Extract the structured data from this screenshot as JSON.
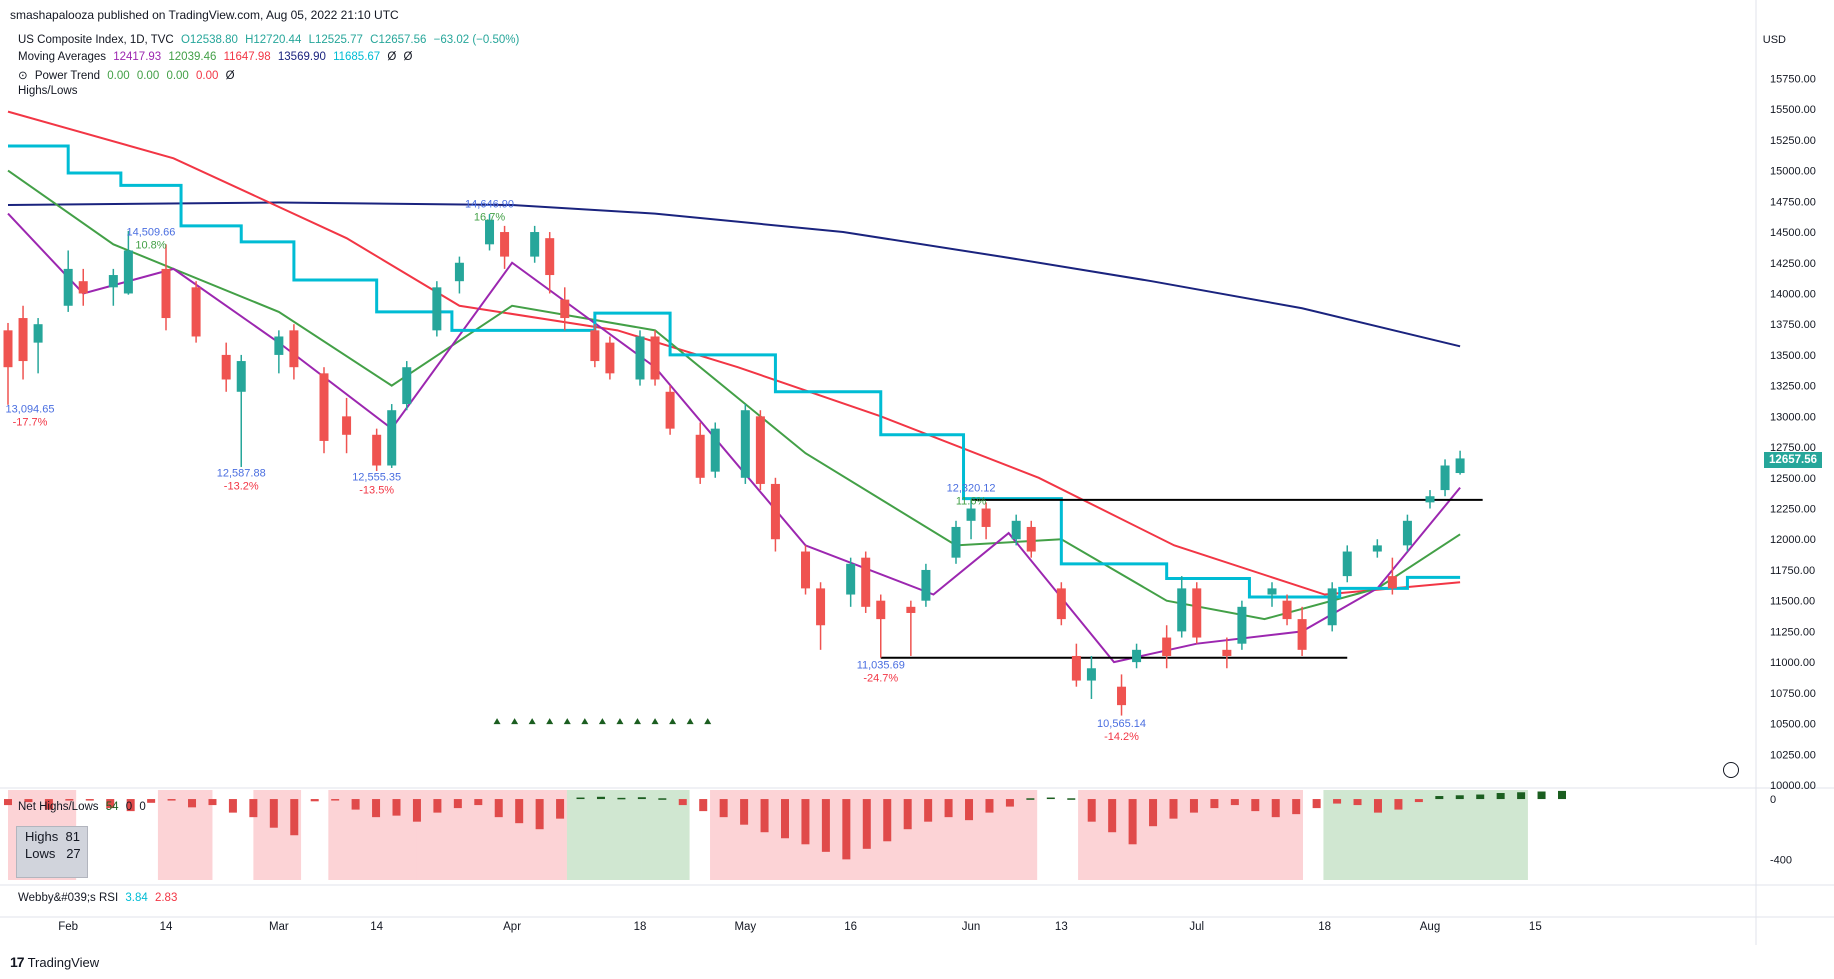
{
  "header": {
    "published_line": "smashapalooza published on TradingView.com, Aug 05, 2022 21:10 UTC"
  },
  "legend": {
    "symbol_line": {
      "name": "US Composite Index, 1D, TVC",
      "open": "O12538.80",
      "high": "H12720.44",
      "low": "L12525.77",
      "close": "C12657.56",
      "change": "−63.02 (−0.50%)"
    },
    "ma_line": {
      "label": "Moving Averages",
      "v1": "12417.93",
      "v2": "12039.46",
      "v3": "11647.98",
      "v4": "13569.90",
      "v5": "11685.67",
      "v6": "Ø",
      "v7": "Ø"
    },
    "power_trend": {
      "label": "Power Trend",
      "v1": "0.00",
      "v2": "0.00",
      "v3": "0.00",
      "v4": "0.00",
      "v5": "Ø"
    },
    "highs_lows": {
      "label": "Highs/Lows"
    }
  },
  "axis": {
    "currency": "USD",
    "last_price": "12657.56",
    "price_ticks": [
      "15750.00",
      "15500.00",
      "15250.00",
      "15000.00",
      "14750.00",
      "14500.00",
      "14250.00",
      "14000.00",
      "13750.00",
      "13500.00",
      "13250.00",
      "13000.00",
      "12750.00",
      "12500.00",
      "12250.00",
      "12000.00",
      "11750.00",
      "11500.00",
      "11250.00",
      "11000.00",
      "10750.00",
      "10500.00",
      "10250.00",
      "10000.00"
    ],
    "sub_ticks": [
      "0",
      "-400"
    ]
  },
  "time_axis": [
    "Feb",
    "14",
    "Mar",
    "14",
    "Apr",
    "18",
    "May",
    "16",
    "Jun",
    "13",
    "Jul",
    "18",
    "Aug",
    "15"
  ],
  "annotations": [
    {
      "price": "14,509.66",
      "pct": "10.8%"
    },
    {
      "price": "14,646.90",
      "pct": "16.7%"
    },
    {
      "price": "13,094.65",
      "pct": "-17.7%"
    },
    {
      "price": "12,587.88",
      "pct": "-13.2%"
    },
    {
      "price": "12,555.35",
      "pct": "-13.5%"
    },
    {
      "price": "12,320.12",
      "pct": "11.6%"
    },
    {
      "price": "11,035.69",
      "pct": "-24.7%"
    },
    {
      "price": "10,565.14",
      "pct": "-14.2%"
    }
  ],
  "subpanel": {
    "label": "Net Highs/Lows",
    "v1": "54",
    "v2": "0",
    "v3": "0",
    "highs_label": "Highs",
    "highs_value": "81",
    "lows_label": "Lows",
    "lows_value": "27"
  },
  "rsi": {
    "label": "Webby&#039;s RSI",
    "v1": "3.84",
    "v2": "2.83"
  },
  "footer": {
    "brand": "TradingView"
  },
  "colors": {
    "up": "#26a69a",
    "down": "#ef5350",
    "ma_purple": "#9c27b0",
    "ma_green": "#43a047",
    "ma_red": "#f23645",
    "ma_navy": "#1a237e",
    "ma_cyan": "#00bcd4"
  },
  "chart_data": {
    "type": "candlestick",
    "title": "US Composite Index, 1D, TVC",
    "ylim": [
      10000,
      15900
    ],
    "x_range_days": [
      "2022-01-24",
      "2022-08-22"
    ],
    "candles": [
      [
        "2022-01-24",
        13700,
        13760,
        13094,
        13400
      ],
      [
        "2022-01-26",
        13800,
        13900,
        13300,
        13450
      ],
      [
        "2022-01-28",
        13600,
        13800,
        13350,
        13750
      ],
      [
        "2022-02-01",
        13900,
        14350,
        13850,
        14200
      ],
      [
        "2022-02-03",
        14100,
        14200,
        13900,
        14000
      ],
      [
        "2022-02-07",
        14050,
        14200,
        13900,
        14150
      ],
      [
        "2022-02-09",
        14000,
        14509,
        13990,
        14350
      ],
      [
        "2022-02-14",
        14200,
        14400,
        13700,
        13800
      ],
      [
        "2022-02-18",
        14050,
        14100,
        13600,
        13650
      ],
      [
        "2022-02-22",
        13500,
        13600,
        13200,
        13300
      ],
      [
        "2022-02-24",
        13200,
        13500,
        12588,
        13450
      ],
      [
        "2022-03-01",
        13500,
        13700,
        13350,
        13650
      ],
      [
        "2022-03-03",
        13700,
        13750,
        13300,
        13400
      ],
      [
        "2022-03-07",
        13350,
        13400,
        12700,
        12800
      ],
      [
        "2022-03-10",
        13000,
        13150,
        12700,
        12850
      ],
      [
        "2022-03-14",
        12850,
        12900,
        12555,
        12600
      ],
      [
        "2022-03-16",
        12600,
        13100,
        12580,
        13050
      ],
      [
        "2022-03-18",
        13100,
        13450,
        13050,
        13400
      ],
      [
        "2022-03-22",
        13700,
        14100,
        13650,
        14050
      ],
      [
        "2022-03-25",
        14100,
        14300,
        14000,
        14250
      ],
      [
        "2022-03-29",
        14400,
        14646,
        14350,
        14600
      ],
      [
        "2022-03-31",
        14500,
        14550,
        14200,
        14300
      ],
      [
        "2022-04-04",
        14300,
        14550,
        14250,
        14500
      ],
      [
        "2022-04-06",
        14450,
        14500,
        14000,
        14150
      ],
      [
        "2022-04-08",
        13950,
        14050,
        13700,
        13800
      ],
      [
        "2022-04-12",
        13700,
        13750,
        13400,
        13450
      ],
      [
        "2022-04-14",
        13600,
        13650,
        13300,
        13350
      ],
      [
        "2022-04-18",
        13300,
        13700,
        13250,
        13650
      ],
      [
        "2022-04-20",
        13650,
        13700,
        13250,
        13300
      ],
      [
        "2022-04-22",
        13200,
        13250,
        12850,
        12900
      ],
      [
        "2022-04-26",
        12850,
        12950,
        12450,
        12500
      ],
      [
        "2022-04-28",
        12550,
        12950,
        12500,
        12900
      ],
      [
        "2022-05-02",
        12500,
        13100,
        12450,
        13050
      ],
      [
        "2022-05-04",
        13000,
        13050,
        12400,
        12450
      ],
      [
        "2022-05-06",
        12450,
        12500,
        11900,
        12000
      ],
      [
        "2022-05-10",
        11900,
        11950,
        11550,
        11600
      ],
      [
        "2022-05-12",
        11600,
        11650,
        11100,
        11300
      ],
      [
        "2022-05-16",
        11550,
        11850,
        11450,
        11800
      ],
      [
        "2022-05-18",
        11850,
        11900,
        11400,
        11450
      ],
      [
        "2022-05-20",
        11500,
        11550,
        11036,
        11350
      ],
      [
        "2022-05-24",
        11450,
        11500,
        11050,
        11400
      ],
      [
        "2022-05-26",
        11500,
        11800,
        11450,
        11750
      ],
      [
        "2022-05-30",
        11850,
        12150,
        11800,
        12100
      ],
      [
        "2022-06-01",
        12150,
        12320,
        12000,
        12250
      ],
      [
        "2022-06-03",
        12250,
        12300,
        12000,
        12100
      ],
      [
        "2022-06-07",
        12000,
        12200,
        11950,
        12150
      ],
      [
        "2022-06-09",
        12100,
        12150,
        11850,
        11900
      ],
      [
        "2022-06-13",
        11600,
        11650,
        11300,
        11350
      ],
      [
        "2022-06-15",
        11050,
        11150,
        10800,
        10850
      ],
      [
        "2022-06-17",
        10850,
        11050,
        10700,
        10950
      ],
      [
        "2022-06-21",
        10800,
        10900,
        10565,
        10650
      ],
      [
        "2022-06-23",
        11000,
        11150,
        10950,
        11100
      ],
      [
        "2022-06-27",
        11200,
        11300,
        10950,
        11050
      ],
      [
        "2022-06-29",
        11250,
        11700,
        11200,
        11600
      ],
      [
        "2022-07-01",
        11600,
        11650,
        11150,
        11200
      ],
      [
        "2022-07-05",
        11100,
        11200,
        10950,
        11050
      ],
      [
        "2022-07-07",
        11150,
        11500,
        11100,
        11450
      ],
      [
        "2022-07-11",
        11550,
        11650,
        11450,
        11600
      ],
      [
        "2022-07-13",
        11500,
        11550,
        11300,
        11350
      ],
      [
        "2022-07-15",
        11350,
        11450,
        11050,
        11100
      ],
      [
        "2022-07-19",
        11300,
        11650,
        11250,
        11600
      ],
      [
        "2022-07-21",
        11700,
        11950,
        11650,
        11900
      ],
      [
        "2022-07-25",
        11900,
        12000,
        11850,
        11950
      ],
      [
        "2022-07-27",
        11700,
        11850,
        11550,
        11600
      ],
      [
        "2022-07-29",
        11950,
        12200,
        11900,
        12150
      ],
      [
        "2022-08-01",
        12300,
        12400,
        12250,
        12350
      ],
      [
        "2022-08-03",
        12400,
        12650,
        12350,
        12600
      ],
      [
        "2022-08-05",
        12538.8,
        12720.44,
        12525.77,
        12657.56
      ]
    ],
    "series": [
      {
        "name": "MA 200",
        "color": "#1a237e",
        "points": [
          [
            "2022-01-24",
            14720
          ],
          [
            "2022-03-01",
            14740
          ],
          [
            "2022-04-01",
            14720
          ],
          [
            "2022-04-20",
            14650
          ],
          [
            "2022-05-15",
            14500
          ],
          [
            "2022-06-05",
            14300
          ],
          [
            "2022-06-25",
            14100
          ],
          [
            "2022-07-15",
            13880
          ],
          [
            "2022-08-05",
            13570
          ]
        ]
      },
      {
        "name": "MA 50",
        "color": "#f23645",
        "points": [
          [
            "2022-01-24",
            15480
          ],
          [
            "2022-02-15",
            15100
          ],
          [
            "2022-03-10",
            14450
          ],
          [
            "2022-03-25",
            13900
          ],
          [
            "2022-04-15",
            13700
          ],
          [
            "2022-05-01",
            13400
          ],
          [
            "2022-05-20",
            13000
          ],
          [
            "2022-06-10",
            12500
          ],
          [
            "2022-06-28",
            11950
          ],
          [
            "2022-07-18",
            11550
          ],
          [
            "2022-08-05",
            11650
          ]
        ]
      },
      {
        "name": "MA 21",
        "color": "#43a047",
        "points": [
          [
            "2022-01-24",
            15000
          ],
          [
            "2022-02-07",
            14400
          ],
          [
            "2022-03-01",
            13850
          ],
          [
            "2022-03-16",
            13250
          ],
          [
            "2022-04-01",
            13900
          ],
          [
            "2022-04-20",
            13700
          ],
          [
            "2022-05-10",
            12700
          ],
          [
            "2022-05-30",
            11950
          ],
          [
            "2022-06-13",
            12000
          ],
          [
            "2022-06-27",
            11500
          ],
          [
            "2022-07-10",
            11350
          ],
          [
            "2022-07-25",
            11600
          ],
          [
            "2022-08-05",
            12040
          ]
        ]
      },
      {
        "name": "MA 10",
        "color": "#9c27b0",
        "points": [
          [
            "2022-01-24",
            14650
          ],
          [
            "2022-02-03",
            14000
          ],
          [
            "2022-02-15",
            14200
          ],
          [
            "2022-03-01",
            13600
          ],
          [
            "2022-03-16",
            12900
          ],
          [
            "2022-04-01",
            14250
          ],
          [
            "2022-04-20",
            13400
          ],
          [
            "2022-05-10",
            11950
          ],
          [
            "2022-05-27",
            11550
          ],
          [
            "2022-06-06",
            12050
          ],
          [
            "2022-06-20",
            11000
          ],
          [
            "2022-07-01",
            11150
          ],
          [
            "2022-07-15",
            11250
          ],
          [
            "2022-07-25",
            11600
          ],
          [
            "2022-08-05",
            12420
          ]
        ]
      },
      {
        "name": "Power Trend",
        "color": "#00bcd4",
        "step": true,
        "points": [
          [
            "2022-01-24",
            15200
          ],
          [
            "2022-02-01",
            14980
          ],
          [
            "2022-02-08",
            14880
          ],
          [
            "2022-02-16",
            14550
          ],
          [
            "2022-02-24",
            14420
          ],
          [
            "2022-03-03",
            14110
          ],
          [
            "2022-03-14",
            13850
          ],
          [
            "2022-03-24",
            13700
          ],
          [
            "2022-04-12",
            13840
          ],
          [
            "2022-04-22",
            13500
          ],
          [
            "2022-05-06",
            13200
          ],
          [
            "2022-05-20",
            12850
          ],
          [
            "2022-05-31",
            12330
          ],
          [
            "2022-06-13",
            11800
          ],
          [
            "2022-06-27",
            11680
          ],
          [
            "2022-07-08",
            11530
          ],
          [
            "2022-07-20",
            11600
          ],
          [
            "2022-07-29",
            11690
          ],
          [
            "2022-08-05",
            11690
          ]
        ]
      }
    ],
    "horizontal_lines": [
      {
        "price": 12320,
        "from": "2022-06-01",
        "to": "2022-08-08"
      },
      {
        "price": 11036,
        "from": "2022-05-20",
        "to": "2022-07-21"
      }
    ],
    "power_trend_markers": {
      "start": "2022-03-30",
      "end": "2022-04-27",
      "price": 10520,
      "count": 13
    },
    "net_highs_lows": {
      "ylim": [
        -550,
        60
      ],
      "values": [
        [
          0,
          -40
        ],
        [
          3,
          -20
        ],
        [
          6,
          -70
        ],
        [
          9,
          -10
        ],
        [
          12,
          -5
        ],
        [
          15,
          -60
        ],
        [
          18,
          -80
        ],
        [
          21,
          -25
        ],
        [
          24,
          -10
        ],
        [
          27,
          -55
        ],
        [
          30,
          -40
        ],
        [
          33,
          -90
        ],
        [
          36,
          -120
        ],
        [
          39,
          -190
        ],
        [
          42,
          -240
        ],
        [
          45,
          -15
        ],
        [
          48,
          -8
        ],
        [
          51,
          -70
        ],
        [
          54,
          -120
        ],
        [
          57,
          -110
        ],
        [
          60,
          -150
        ],
        [
          63,
          -90
        ],
        [
          66,
          -60
        ],
        [
          69,
          -40
        ],
        [
          72,
          -120
        ],
        [
          75,
          -160
        ],
        [
          78,
          -200
        ],
        [
          81,
          -130
        ],
        [
          84,
          10
        ],
        [
          87,
          15
        ],
        [
          90,
          8
        ],
        [
          93,
          12
        ],
        [
          96,
          5
        ],
        [
          99,
          -40
        ],
        [
          102,
          -80
        ],
        [
          105,
          -120
        ],
        [
          108,
          -170
        ],
        [
          111,
          -220
        ],
        [
          114,
          -260
        ],
        [
          117,
          -300
        ],
        [
          120,
          -350
        ],
        [
          123,
          -400
        ],
        [
          126,
          -330
        ],
        [
          129,
          -280
        ],
        [
          132,
          -200
        ],
        [
          135,
          -150
        ],
        [
          138,
          -120
        ],
        [
          141,
          -140
        ],
        [
          144,
          -90
        ],
        [
          147,
          -50
        ],
        [
          150,
          5
        ],
        [
          153,
          10
        ],
        [
          156,
          5
        ],
        [
          159,
          -150
        ],
        [
          162,
          -220
        ],
        [
          165,
          -300
        ],
        [
          168,
          -180
        ],
        [
          171,
          -130
        ],
        [
          174,
          -90
        ],
        [
          177,
          -60
        ],
        [
          180,
          -40
        ],
        [
          183,
          -80
        ],
        [
          186,
          -120
        ],
        [
          189,
          -100
        ],
        [
          192,
          -60
        ],
        [
          195,
          -30
        ],
        [
          198,
          -40
        ],
        [
          201,
          -90
        ],
        [
          204,
          -70
        ],
        [
          207,
          -20
        ],
        [
          210,
          20
        ],
        [
          213,
          25
        ],
        [
          216,
          30
        ],
        [
          219,
          40
        ],
        [
          222,
          45
        ],
        [
          225,
          50
        ],
        [
          228,
          54
        ]
      ],
      "shade_bands": [
        [
          0,
          10,
          "red"
        ],
        [
          22,
          30,
          "red"
        ],
        [
          36,
          43,
          "red"
        ],
        [
          47,
          60,
          "red"
        ],
        [
          60,
          82,
          "red"
        ],
        [
          82,
          93,
          "green"
        ],
        [
          93,
          100,
          "green"
        ],
        [
          103,
          151,
          "red"
        ],
        [
          157,
          190,
          "red"
        ],
        [
          193,
          223,
          "green"
        ]
      ]
    }
  }
}
